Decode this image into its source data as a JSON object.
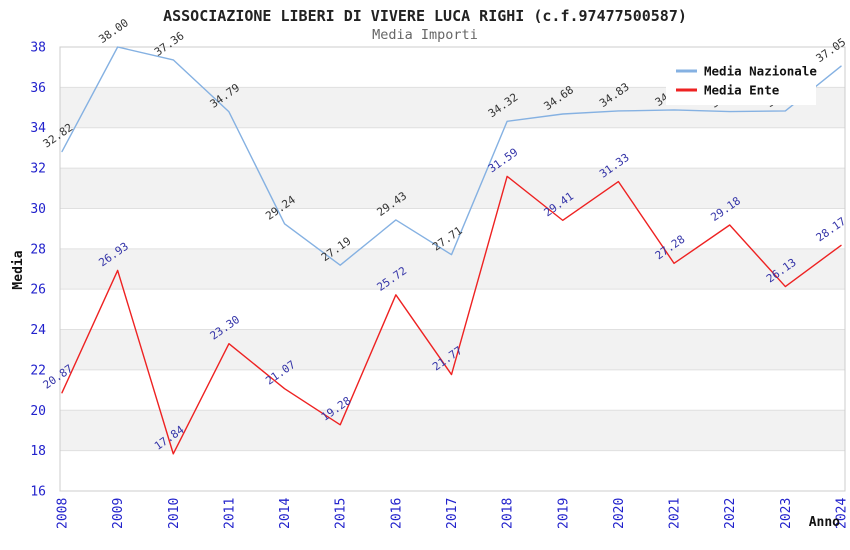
{
  "chart_data": {
    "type": "line",
    "title": "ASSOCIAZIONE LIBERI DI VIVERE LUCA RIGHI (c.f.97477500587)",
    "subtitle": "Media Importi",
    "xlabel": "Anno",
    "ylabel": "Media",
    "categories": [
      "2008",
      "2009",
      "2010",
      "2011",
      "2014",
      "2015",
      "2016",
      "2017",
      "2018",
      "2019",
      "2020",
      "2021",
      "2022",
      "2023",
      "2024"
    ],
    "series": [
      {
        "name": "Media Nazionale",
        "color": "#85b1e2",
        "label_color": "#333333",
        "values": [
          32.82,
          38.0,
          37.36,
          34.79,
          29.24,
          27.19,
          29.43,
          27.71,
          34.32,
          34.68,
          34.83,
          34.88,
          34.8,
          34.83,
          37.05
        ]
      },
      {
        "name": "Media Ente",
        "color": "#ee2222",
        "label_color": "#3434a8",
        "values": [
          20.87,
          26.93,
          17.84,
          23.3,
          21.07,
          19.28,
          25.72,
          21.77,
          31.59,
          29.41,
          31.33,
          27.28,
          29.18,
          26.13,
          28.17
        ]
      }
    ],
    "ylim": [
      16,
      38
    ],
    "y_ticks": [
      16,
      18,
      20,
      22,
      24,
      26,
      28,
      30,
      32,
      34,
      36,
      38
    ],
    "y_tick_step": 2,
    "grid": "horizontal-bands",
    "legend_position": "top-right",
    "point_labels": "rotated"
  },
  "colors": {
    "title": "#222222",
    "subtitle": "#666666",
    "tick_label": "#2222cc",
    "axis_title": "#111111",
    "band": "#f2f2f2",
    "gridline": "#e0e0e0",
    "plot_border": "#cccccc",
    "legend_bg": "#ffffff",
    "legend_text": "#111111",
    "background": "#ffffff"
  }
}
